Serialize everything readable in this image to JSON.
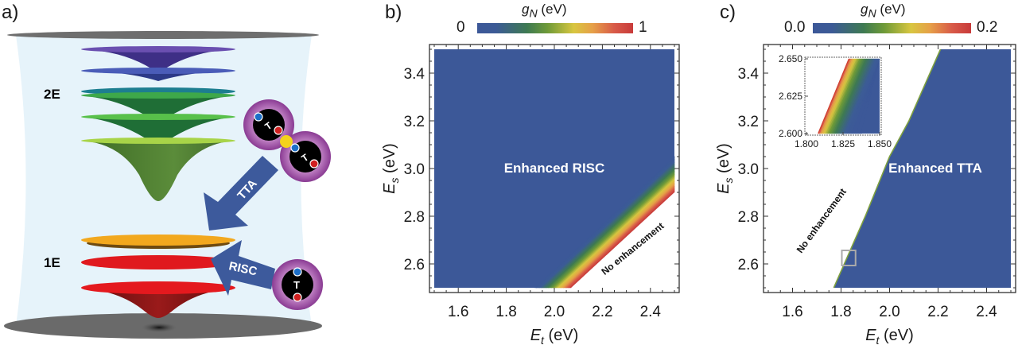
{
  "panels": {
    "a": {
      "label": "a)",
      "level_labels": [
        "2E",
        "1E"
      ],
      "arrows": [
        "TTA",
        "RISC"
      ],
      "molecule_symbol": "T",
      "colors": {
        "background": "#e6f3fa",
        "arrow": "#3d5a9c",
        "molecule": "#a14fa8"
      }
    },
    "b": {
      "label": "b)"
    },
    "c": {
      "label": "c)"
    }
  },
  "chart_data": [
    {
      "type": "heatmap",
      "panel": "b",
      "xlabel": {
        "var": "E",
        "sub": "t",
        "unit": " (eV)"
      },
      "ylabel": {
        "var": "E",
        "sub": "s",
        "unit": " (eV)"
      },
      "xlim": [
        1.5,
        2.5
      ],
      "ylim": [
        2.5,
        3.5
      ],
      "xticks": [
        "1.6",
        "1.8",
        "2.0",
        "2.2",
        "2.4"
      ],
      "yticks": [
        "2.6",
        "2.8",
        "3.0",
        "3.2",
        "3.4"
      ],
      "colorbar": {
        "title_var": "g",
        "title_sub": "N",
        "title_unit": " (eV)",
        "min_label": "0",
        "max_label": "1",
        "range": [
          0,
          1
        ]
      },
      "regions": {
        "zero_edge": [
          [
            1.92,
            2.5
          ],
          [
            2.5,
            3.05
          ]
        ],
        "max_edge": [
          [
            2.07,
            2.5
          ],
          [
            2.5,
            2.9
          ]
        ]
      },
      "annotations": [
        "Enhanced RISC",
        "No enhancement"
      ]
    },
    {
      "type": "heatmap",
      "panel": "c",
      "xlabel": {
        "var": "E",
        "sub": "t",
        "unit": " (eV)"
      },
      "ylabel": {
        "var": "E",
        "sub": "s",
        "unit": " (eV)"
      },
      "xlim": [
        1.5,
        2.5
      ],
      "ylim": [
        2.5,
        3.5
      ],
      "xticks": [
        "1.6",
        "1.8",
        "2.0",
        "2.2",
        "2.4"
      ],
      "yticks": [
        "2.6",
        "2.8",
        "3.0",
        "3.2",
        "3.4"
      ],
      "colorbar": {
        "title_var": "g",
        "title_sub": "N",
        "title_unit": " (eV)",
        "min_label": "0.0",
        "max_label": "0.2",
        "range": [
          0,
          0.2
        ]
      },
      "boundary": [
        [
          1.77,
          2.5
        ],
        [
          1.9,
          2.8
        ],
        [
          2.0,
          3.05
        ],
        [
          2.08,
          3.2
        ],
        [
          2.21,
          3.5
        ]
      ],
      "annotations": [
        "Enhanced TTA",
        "No enhancement"
      ],
      "zoom_box": {
        "x": [
          1.8,
          1.85
        ],
        "y": [
          2.6,
          2.65
        ]
      },
      "inset": {
        "xlim": [
          1.8,
          1.85
        ],
        "ylim": [
          2.6,
          2.65
        ],
        "xticks": [
          "1.800",
          "1.825",
          "1.850"
        ],
        "yticks": [
          "2.600",
          "2.625",
          "2.650"
        ],
        "boundary": [
          [
            1.808,
            2.6
          ],
          [
            1.829,
            2.65
          ]
        ],
        "fade_to_zero_width": 0.03
      }
    }
  ]
}
